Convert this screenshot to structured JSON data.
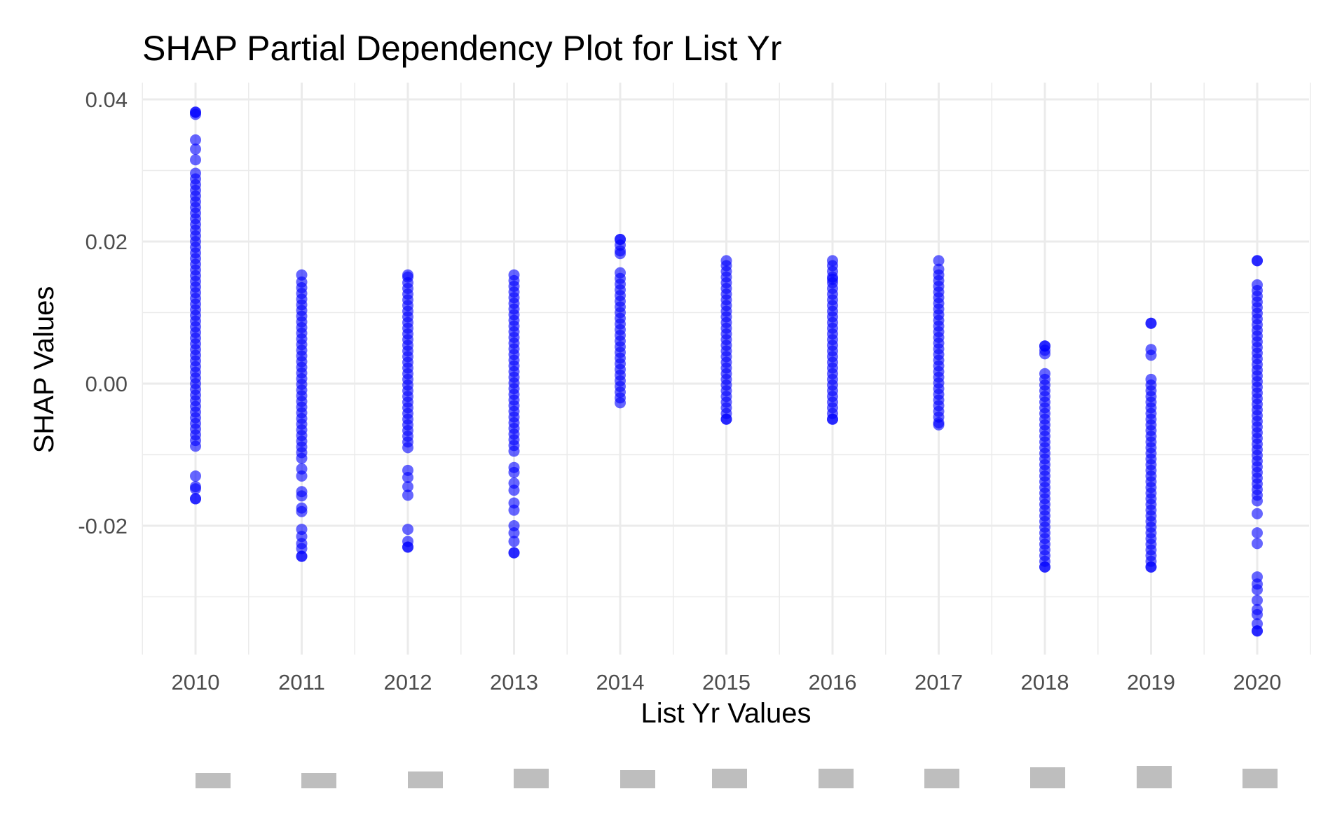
{
  "chart_data": {
    "type": "scatter",
    "title": "SHAP Partial Dependency Plot for List Yr",
    "xlabel": "List Yr Values",
    "ylabel": "SHAP Values",
    "categories": [
      "2010",
      "2011",
      "2012",
      "2013",
      "2014",
      "2015",
      "2016",
      "2017",
      "2018",
      "2019",
      "2020"
    ],
    "y_ticks": [
      "-0.02",
      "0.00",
      "0.02",
      "0.04"
    ],
    "y_tick_values": [
      -0.02,
      0.0,
      0.02,
      0.04
    ],
    "ylim": [
      -0.0375,
      0.0415
    ],
    "grid": true,
    "point_color": "#0000ff",
    "point_opacity": 0.6,
    "series": [
      {
        "x": "2010",
        "min": -0.0162,
        "max": 0.0382,
        "dense_min": -0.0088,
        "dense_max": 0.03,
        "outliers": [
          0.0382,
          0.0379,
          0.0343,
          0.033,
          0.0315,
          -0.013,
          -0.0145,
          -0.0148,
          -0.0162
        ]
      },
      {
        "x": "2011",
        "min": -0.0243,
        "max": 0.0153,
        "dense_min": -0.0105,
        "dense_max": 0.015,
        "outliers": [
          -0.012,
          -0.013,
          -0.0152,
          -0.0158,
          -0.0175,
          -0.018,
          -0.0205,
          -0.0215,
          -0.0225,
          -0.0232,
          -0.0243
        ]
      },
      {
        "x": "2012",
        "min": -0.023,
        "max": 0.0153,
        "dense_min": -0.009,
        "dense_max": 0.015,
        "outliers": [
          -0.0122,
          -0.0132,
          -0.0145,
          -0.0157,
          -0.0205,
          -0.0222,
          -0.023
        ]
      },
      {
        "x": "2013",
        "min": -0.0238,
        "max": 0.0153,
        "dense_min": -0.0095,
        "dense_max": 0.015,
        "outliers": [
          -0.0118,
          -0.0125,
          -0.014,
          -0.015,
          -0.0168,
          -0.0178,
          -0.02,
          -0.021,
          -0.0222,
          -0.0238
        ]
      },
      {
        "x": "2014",
        "min": -0.0027,
        "max": 0.0203,
        "dense_min": -0.002,
        "dense_max": 0.0162,
        "outliers": [
          0.0203,
          0.0195,
          0.0187,
          0.0183
        ]
      },
      {
        "x": "2015",
        "min": -0.005,
        "max": 0.0173,
        "dense_min": -0.005,
        "dense_max": 0.017,
        "outliers": []
      },
      {
        "x": "2016",
        "min": -0.005,
        "max": 0.0173,
        "dense_min": -0.005,
        "dense_max": 0.017,
        "outliers": [
          0.0147
        ]
      },
      {
        "x": "2017",
        "min": -0.0058,
        "max": 0.0173,
        "dense_min": -0.0055,
        "dense_max": 0.0165,
        "outliers": []
      },
      {
        "x": "2018",
        "min": -0.0258,
        "max": 0.0053,
        "dense_min": -0.0258,
        "dense_max": 0.0015,
        "outliers": [
          0.0053,
          0.0047,
          0.0042
        ]
      },
      {
        "x": "2019",
        "min": -0.0258,
        "max": 0.0085,
        "dense_min": -0.0258,
        "dense_max": 0.0012,
        "outliers": [
          0.0085,
          0.0048,
          0.004
        ]
      },
      {
        "x": "2020",
        "min": -0.0348,
        "max": 0.0173,
        "dense_min": -0.0165,
        "dense_max": 0.014,
        "outliers": [
          0.0173,
          -0.0183,
          -0.021,
          -0.0225,
          -0.0272,
          -0.0282,
          -0.029,
          -0.0305,
          -0.0318,
          -0.0325,
          -0.0338,
          -0.0348
        ]
      }
    ],
    "distribution_bars": {
      "color": "#bebebe",
      "relative_counts": [
        0.55,
        0.55,
        0.6,
        0.7,
        0.65,
        0.7,
        0.7,
        0.7,
        0.75,
        0.8,
        0.7
      ]
    }
  }
}
